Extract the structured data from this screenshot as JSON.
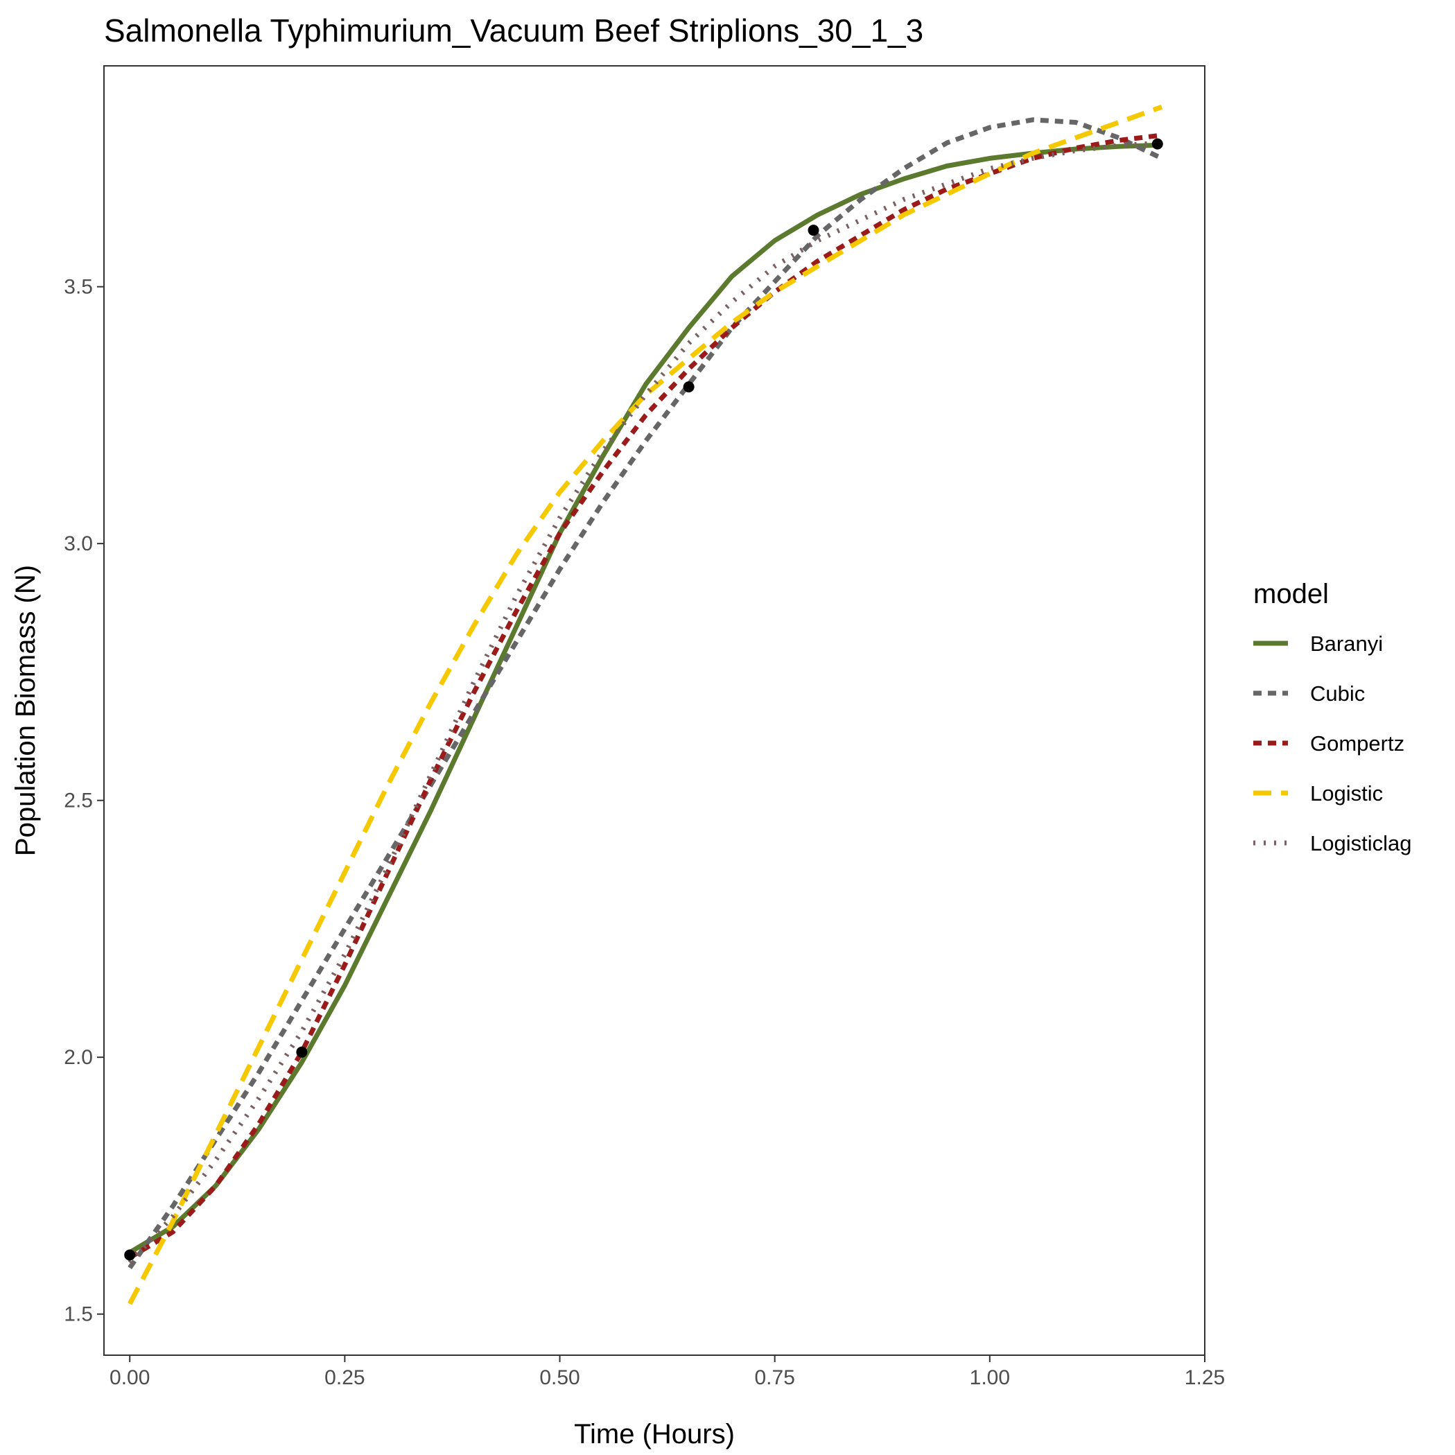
{
  "chart_data": {
    "type": "line",
    "title": "Salmonella Typhimurium_Vacuum Beef Striplions_30_1_3",
    "xlabel": "Time (Hours)",
    "ylabel": "Population Biomass (N)",
    "xlim": [
      -0.03,
      1.25
    ],
    "ylim": [
      1.42,
      3.93
    ],
    "x_ticks": [
      0.0,
      0.25,
      0.5,
      0.75,
      1.0,
      1.25
    ],
    "x_tick_labels": [
      "0.00",
      "0.25",
      "0.50",
      "0.75",
      "1.00",
      "1.25"
    ],
    "y_ticks": [
      1.5,
      2.0,
      2.5,
      3.0,
      3.5
    ],
    "y_tick_labels": [
      "1.5",
      "2.0",
      "2.5",
      "3.0",
      "3.5"
    ],
    "grid": false,
    "legend": {
      "title": "model",
      "position": "right"
    },
    "points": [
      {
        "x": 0.0,
        "y": 1.615
      },
      {
        "x": 0.2,
        "y": 2.01
      },
      {
        "x": 0.65,
        "y": 3.305
      },
      {
        "x": 0.795,
        "y": 3.61
      },
      {
        "x": 1.195,
        "y": 3.778
      }
    ],
    "series": [
      {
        "name": "Baranyi",
        "color": "#5b7a2e",
        "dash": "solid",
        "x": [
          0.0,
          0.05,
          0.1,
          0.15,
          0.2,
          0.25,
          0.3,
          0.35,
          0.4,
          0.45,
          0.5,
          0.55,
          0.6,
          0.65,
          0.7,
          0.75,
          0.8,
          0.85,
          0.9,
          0.95,
          1.0,
          1.05,
          1.1,
          1.15,
          1.2
        ],
        "y": [
          1.62,
          1.67,
          1.75,
          1.86,
          1.99,
          2.14,
          2.31,
          2.48,
          2.66,
          2.84,
          3.02,
          3.17,
          3.31,
          3.42,
          3.52,
          3.59,
          3.64,
          3.68,
          3.71,
          3.735,
          3.75,
          3.76,
          3.768,
          3.773,
          3.776
        ]
      },
      {
        "name": "Cubic",
        "color": "#666666",
        "dash": "dashed",
        "x": [
          0.0,
          0.05,
          0.1,
          0.15,
          0.2,
          0.25,
          0.3,
          0.35,
          0.4,
          0.45,
          0.5,
          0.55,
          0.6,
          0.65,
          0.7,
          0.75,
          0.8,
          0.85,
          0.9,
          0.95,
          1.0,
          1.05,
          1.1,
          1.15,
          1.2
        ],
        "y": [
          1.59,
          1.71,
          1.84,
          1.97,
          2.11,
          2.25,
          2.39,
          2.53,
          2.67,
          2.81,
          2.95,
          3.08,
          3.2,
          3.31,
          3.42,
          3.51,
          3.6,
          3.67,
          3.73,
          3.78,
          3.81,
          3.825,
          3.82,
          3.79,
          3.75
        ]
      },
      {
        "name": "Gompertz",
        "color": "#9b1b1b",
        "dash": "dashed",
        "x": [
          0.0,
          0.05,
          0.1,
          0.15,
          0.2,
          0.25,
          0.3,
          0.35,
          0.4,
          0.45,
          0.5,
          0.55,
          0.6,
          0.65,
          0.7,
          0.75,
          0.8,
          0.85,
          0.9,
          0.95,
          1.0,
          1.05,
          1.1,
          1.15,
          1.2
        ],
        "y": [
          1.61,
          1.66,
          1.75,
          1.87,
          2.01,
          2.18,
          2.36,
          2.54,
          2.71,
          2.87,
          3.02,
          3.14,
          3.25,
          3.34,
          3.42,
          3.49,
          3.55,
          3.6,
          3.65,
          3.69,
          3.72,
          3.75,
          3.77,
          3.785,
          3.795
        ]
      },
      {
        "name": "Logistic",
        "color": "#f5c800",
        "dash": "longdash",
        "x": [
          0.0,
          0.05,
          0.1,
          0.15,
          0.2,
          0.25,
          0.3,
          0.35,
          0.4,
          0.45,
          0.5,
          0.55,
          0.6,
          0.65,
          0.7,
          0.75,
          0.8,
          0.85,
          0.9,
          0.95,
          1.0,
          1.05,
          1.1,
          1.15,
          1.2
        ],
        "y": [
          1.52,
          1.68,
          1.85,
          2.02,
          2.19,
          2.36,
          2.53,
          2.69,
          2.84,
          2.98,
          3.1,
          3.2,
          3.29,
          3.36,
          3.43,
          3.49,
          3.54,
          3.59,
          3.64,
          3.68,
          3.72,
          3.76,
          3.79,
          3.82,
          3.85
        ]
      },
      {
        "name": "Logisticlag",
        "color": "#7a6060",
        "dash": "dotted",
        "x": [
          0.0,
          0.05,
          0.1,
          0.15,
          0.2,
          0.25,
          0.3,
          0.35,
          0.4,
          0.45,
          0.5,
          0.55,
          0.6,
          0.65,
          0.7,
          0.75,
          0.8,
          0.85,
          0.9,
          0.95,
          1.0,
          1.05,
          1.1,
          1.15,
          1.2
        ],
        "y": [
          1.6,
          1.69,
          1.8,
          1.92,
          2.05,
          2.2,
          2.37,
          2.55,
          2.73,
          2.9,
          3.05,
          3.18,
          3.29,
          3.39,
          3.47,
          3.54,
          3.59,
          3.63,
          3.67,
          3.7,
          3.73,
          3.75,
          3.765,
          3.775,
          3.78
        ]
      }
    ]
  }
}
